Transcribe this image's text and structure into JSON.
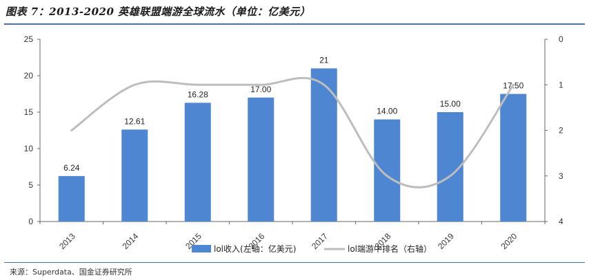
{
  "figure": {
    "title": "图表 7：2013-2020 英雄联盟端游全球流水（单位：亿美元）",
    "source": "来源：Superdata、国金证券研究所"
  },
  "chart_data": {
    "type": "bar",
    "categories": [
      "2013",
      "2014",
      "2015",
      "2016",
      "2017",
      "2018",
      "2019",
      "2020"
    ],
    "series": [
      {
        "name": "lol收入(左轴：亿美元)",
        "type": "bar",
        "axis": "left",
        "color": "#4f86d1",
        "values": [
          6.24,
          12.61,
          16.28,
          17.0,
          21,
          14.0,
          15.0,
          17.5
        ],
        "labels": [
          "6.24",
          "12.61",
          "16.28",
          "17.00",
          "21",
          "14.00",
          "15.00",
          "17.50"
        ]
      },
      {
        "name": "lol端游中排名（右轴）",
        "type": "line",
        "axis": "right",
        "color": "#bdbdbd",
        "values": [
          2,
          1,
          1,
          1,
          1,
          3,
          3,
          1
        ]
      }
    ],
    "y_left": {
      "ylim": [
        0,
        25
      ],
      "ticks": [
        "0",
        "5",
        "10",
        "15",
        "20",
        "25"
      ]
    },
    "y_right": {
      "ylim": [
        0,
        4
      ],
      "inverted": true,
      "ticks": [
        "0",
        "1",
        "2",
        "3",
        "4"
      ]
    },
    "legend": {
      "position": "bottom"
    },
    "grid": false
  }
}
